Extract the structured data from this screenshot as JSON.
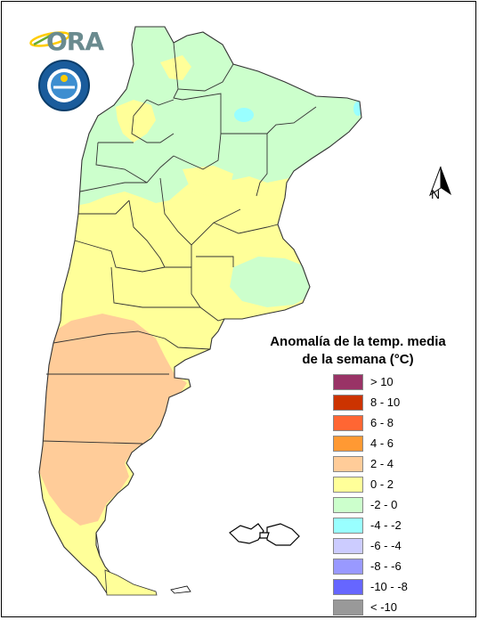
{
  "logo": {
    "text": "ORA"
  },
  "seal": {
    "name": "servicio meteorologico nacional seal"
  },
  "north_arrow": {
    "label": "N"
  },
  "legend": {
    "title_line1": "Anomalía de la temp. media",
    "title_line2": "de la semana (°C)",
    "items": [
      {
        "label": "> 10",
        "color": "#993366"
      },
      {
        "label": "8 - 10",
        "color": "#cc3300"
      },
      {
        "label": "6 - 8",
        "color": "#ff6633"
      },
      {
        "label": "4 - 6",
        "color": "#ff9933"
      },
      {
        "label": "2 - 4",
        "color": "#ffcc99"
      },
      {
        "label": "0 - 2",
        "color": "#ffff99"
      },
      {
        "label": "-2 - 0",
        "color": "#ccffcc"
      },
      {
        "label": "-4 - -2",
        "color": "#99ffff"
      },
      {
        "label": "-6 - -4",
        "color": "#ccccff"
      },
      {
        "label": "-8 - -6",
        "color": "#9999ff"
      },
      {
        "label": "-10 - -8",
        "color": "#6666ff"
      },
      {
        "label": "< -10",
        "color": "#999999"
      }
    ]
  }
}
